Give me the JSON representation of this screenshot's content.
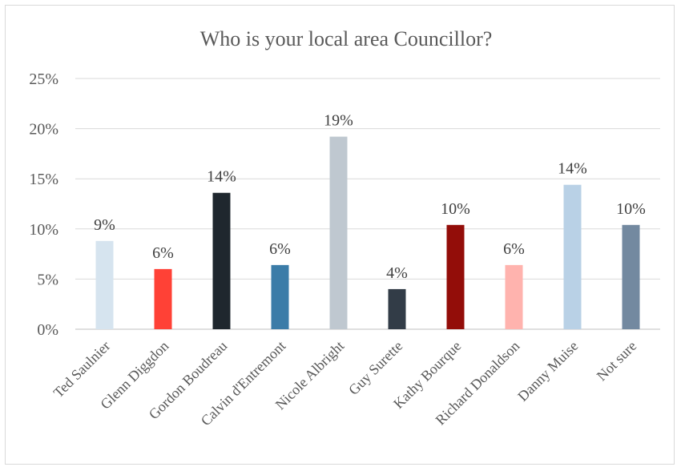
{
  "chart_data": {
    "type": "bar",
    "title": "Who is your local area Councillor?",
    "xlabel": "",
    "ylabel": "",
    "ylim": [
      0,
      25
    ],
    "yticks": [
      0,
      5,
      10,
      15,
      20,
      25
    ],
    "ytick_labels": [
      "0%",
      "5%",
      "10%",
      "15%",
      "20%",
      "25%"
    ],
    "grid": true,
    "legend": "none",
    "categories": [
      "Ted Saulnier",
      "Glenn Diggdon",
      "Gordon Boudreau",
      "Calvin d'Entremont",
      "Nicole Albright",
      "Guy Surette",
      "Kathy Bourque",
      "Richard Donaldson",
      "Danny Muise",
      "Not sure"
    ],
    "values": [
      8.8,
      6.0,
      13.6,
      6.4,
      19.2,
      4.0,
      10.4,
      6.4,
      14.4,
      10.4
    ],
    "data_labels": [
      "9%",
      "6%",
      "14%",
      "6%",
      "19%",
      "4%",
      "10%",
      "6%",
      "14%",
      "10%"
    ],
    "colors": [
      "#d6e4ef",
      "#ff4136",
      "#1f272e",
      "#3b7ca8",
      "#bfc8d0",
      "#323c47",
      "#930d09",
      "#ffb3ae",
      "#b9d1e6",
      "#7389a0"
    ]
  }
}
